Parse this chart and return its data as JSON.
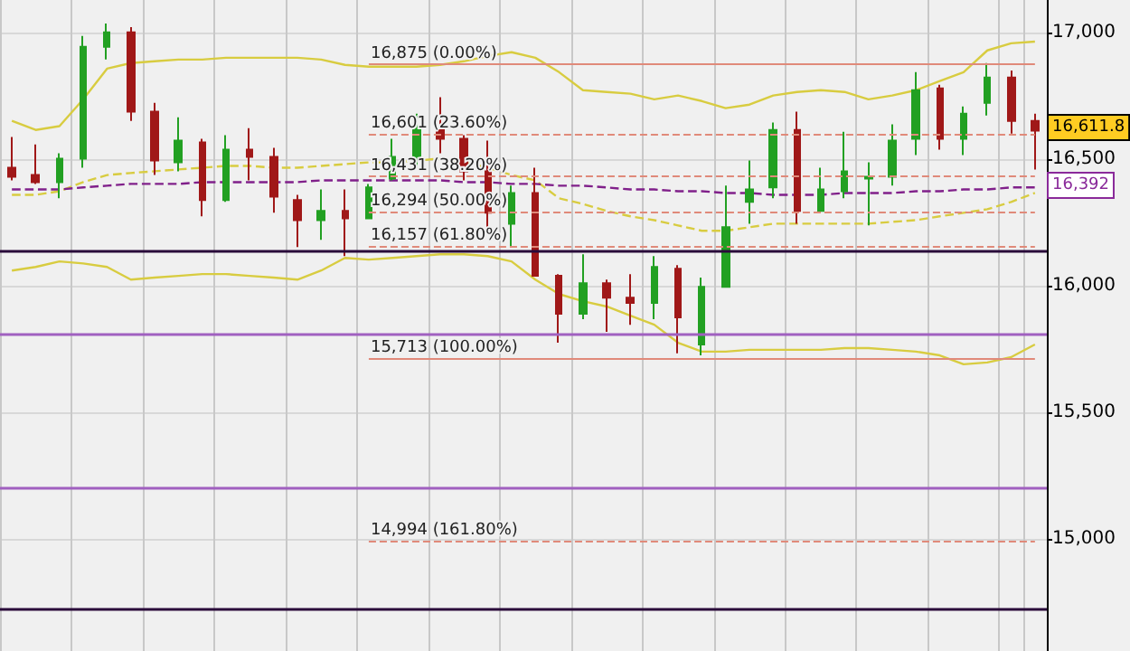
{
  "chart_data": {
    "type": "candlestick",
    "categories": [
      null,
      null,
      null,
      null,
      null,
      null,
      null,
      null,
      null,
      null,
      null,
      null,
      null,
      null,
      null,
      null,
      null,
      null,
      null,
      null,
      null,
      null,
      null,
      null,
      null,
      null,
      null,
      null,
      null,
      null,
      null,
      null,
      null,
      null,
      null,
      null,
      null,
      null,
      null,
      null,
      null,
      null,
      null,
      null
    ],
    "ohlc": [
      [
        16466,
        16587,
        16416,
        16430
      ],
      [
        16437,
        16558,
        16402,
        16409
      ],
      [
        16409,
        16523,
        16345,
        16502
      ],
      [
        16502,
        16986,
        16466,
        16943
      ],
      [
        16943,
        17035,
        16893,
        17000
      ],
      [
        17000,
        17021,
        16651,
        16687
      ],
      [
        16687,
        16722,
        16437,
        16494
      ],
      [
        16487,
        16665,
        16452,
        16573
      ],
      [
        16566,
        16580,
        16274,
        16338
      ],
      [
        16338,
        16594,
        16331,
        16537
      ],
      [
        16537,
        16622,
        16416,
        16509
      ],
      [
        16509,
        16544,
        16288,
        16352
      ],
      [
        16338,
        16359,
        16153,
        16259
      ],
      [
        16259,
        16380,
        16181,
        16295
      ],
      [
        16295,
        16380,
        16117,
        16266
      ],
      [
        16266,
        16402,
        16266,
        16388
      ],
      [
        16423,
        16580,
        16416,
        16509
      ],
      [
        16509,
        16679,
        16466,
        16630
      ],
      [
        16615,
        16744,
        16523,
        16580
      ],
      [
        16580,
        16594,
        16416,
        16452
      ],
      [
        16452,
        16573,
        16231,
        16288
      ],
      [
        16245,
        16395,
        16153,
        16366
      ],
      [
        16366,
        16466,
        16039,
        16039
      ],
      [
        16039,
        16046,
        15775,
        15889
      ],
      [
        15889,
        16124,
        15868,
        16010
      ],
      [
        16010,
        16024,
        15818,
        15953
      ],
      [
        15953,
        16046,
        15846,
        15932
      ],
      [
        15932,
        16117,
        15868,
        16074
      ],
      [
        16067,
        16081,
        15733,
        15875
      ],
      [
        15768,
        16032,
        15725,
        15996
      ],
      [
        15996,
        16395,
        15996,
        16231
      ],
      [
        16331,
        16494,
        16245,
        16380
      ],
      [
        16388,
        16644,
        16345,
        16615
      ],
      [
        16615,
        16687,
        16245,
        16295
      ],
      [
        16295,
        16466,
        16288,
        16380
      ],
      [
        16373,
        16608,
        16345,
        16452
      ],
      [
        16423,
        16487,
        16238,
        16430
      ],
      [
        16430,
        16637,
        16395,
        16573
      ],
      [
        16580,
        16843,
        16516,
        16772
      ],
      [
        16779,
        16793,
        16537,
        16580
      ],
      [
        16580,
        16708,
        16516,
        16679
      ],
      [
        16722,
        16879,
        16672,
        16822
      ],
      [
        16822,
        16850,
        16601,
        16651
      ],
      [
        16651,
        16679,
        16459,
        16612
      ]
    ],
    "series": [
      {
        "type": "line",
        "color": "#d8cc40",
        "line_style": "solid",
        "values": [
          16651,
          16615,
          16630,
          16736,
          16857,
          16879,
          16886,
          16893,
          16893,
          16900,
          16900,
          16900,
          16900,
          16893,
          16872,
          16865,
          16865,
          16865,
          16872,
          16886,
          16907,
          16922,
          16900,
          16843,
          16772,
          16765,
          16758,
          16736,
          16751,
          16729,
          16701,
          16715,
          16751,
          16765,
          16772,
          16765,
          16736,
          16751,
          16772,
          16808,
          16843,
          16929,
          16957,
          16964
        ]
      },
      {
        "type": "line",
        "color": "#d8cc40",
        "line_style": "solid",
        "values": [
          16060,
          16074,
          16096,
          16088,
          16074,
          16024,
          16032,
          16039,
          16046,
          16046,
          16039,
          16032,
          16024,
          16060,
          16110,
          16103,
          16110,
          16117,
          16124,
          16124,
          16117,
          16096,
          16024,
          15967,
          15939,
          15918,
          15882,
          15846,
          15775,
          15740,
          15740,
          15747,
          15747,
          15747,
          15747,
          15754,
          15754,
          15747,
          15740,
          15725,
          15690,
          15697,
          15718,
          15768
        ]
      },
      {
        "type": "line",
        "color": "#d8cc40",
        "line_style": "dashed",
        "values": [
          16359,
          16359,
          16373,
          16409,
          16437,
          16445,
          16452,
          16459,
          16466,
          16473,
          16473,
          16466,
          16466,
          16473,
          16480,
          16487,
          16487,
          16494,
          16502,
          16487,
          16466,
          16437,
          16416,
          16345,
          16323,
          16295,
          16274,
          16259,
          16238,
          16217,
          16217,
          16231,
          16245,
          16245,
          16245,
          16245,
          16245,
          16252,
          16259,
          16274,
          16288,
          16302,
          16331,
          16366
        ]
      },
      {
        "type": "line",
        "color": "#80208a",
        "line_style": "dashed",
        "values": [
          16380,
          16380,
          16380,
          16388,
          16395,
          16402,
          16402,
          16402,
          16409,
          16409,
          16409,
          16409,
          16409,
          16416,
          16416,
          16416,
          16416,
          16416,
          16416,
          16409,
          16409,
          16402,
          16402,
          16395,
          16395,
          16388,
          16380,
          16380,
          16373,
          16373,
          16366,
          16366,
          16359,
          16359,
          16359,
          16366,
          16366,
          16366,
          16373,
          16373,
          16380,
          16380,
          16388,
          16388
        ]
      }
    ],
    "ref_lines": [
      {
        "axis": "y",
        "value": 16875,
        "label": "16,875 (0.00%)",
        "color": "#e08a7a",
        "line_style": "solid"
      },
      {
        "axis": "y",
        "value": 16601,
        "label": "16,601 (23.60%)",
        "color": "#e08a7a",
        "line_style": "dashed"
      },
      {
        "axis": "y",
        "value": 16431,
        "label": "16,431 (38.20%)",
        "color": "#e08a7a",
        "line_style": "dashed"
      },
      {
        "axis": "y",
        "value": 16294,
        "label": "16,294 (50.00%)",
        "color": "#e08a7a",
        "line_style": "dashed"
      },
      {
        "axis": "y",
        "value": 16157,
        "label": "16,157 (61.80%)",
        "color": "#e08a7a",
        "line_style": "dashed"
      },
      {
        "axis": "y",
        "value": 15713,
        "label": "15,713 (100.00%)",
        "color": "#e08a7a",
        "line_style": "solid"
      },
      {
        "axis": "y",
        "value": 14994,
        "label": "14,994 (161.80%)",
        "color": "#e08a7a",
        "line_style": "dashed"
      },
      {
        "axis": "y",
        "value": 16138,
        "color": "#2a0a3a",
        "line_style": "solid"
      },
      {
        "axis": "y",
        "value": 15811,
        "color": "#a060c0",
        "line_style": "solid"
      },
      {
        "axis": "y",
        "value": 15199,
        "color": "#a060c0",
        "line_style": "solid"
      },
      {
        "axis": "y",
        "value": 14722,
        "color": "#2a0a3a",
        "line_style": "solid"
      }
    ],
    "annotations": [
      "16,611.8",
      "16,392"
    ],
    "ylim": [
      14558,
      17128
    ],
    "yticks": [
      {
        "value": 15000,
        "label": "15,000"
      },
      {
        "value": 15500,
        "label": "15,500"
      },
      {
        "value": 16000,
        "label": "16,000"
      },
      {
        "value": 16500,
        "label": "16,500"
      },
      {
        "value": 17000,
        "label": "17,000"
      }
    ],
    "grid": true,
    "marker": "none",
    "tick_labels": "y"
  }
}
